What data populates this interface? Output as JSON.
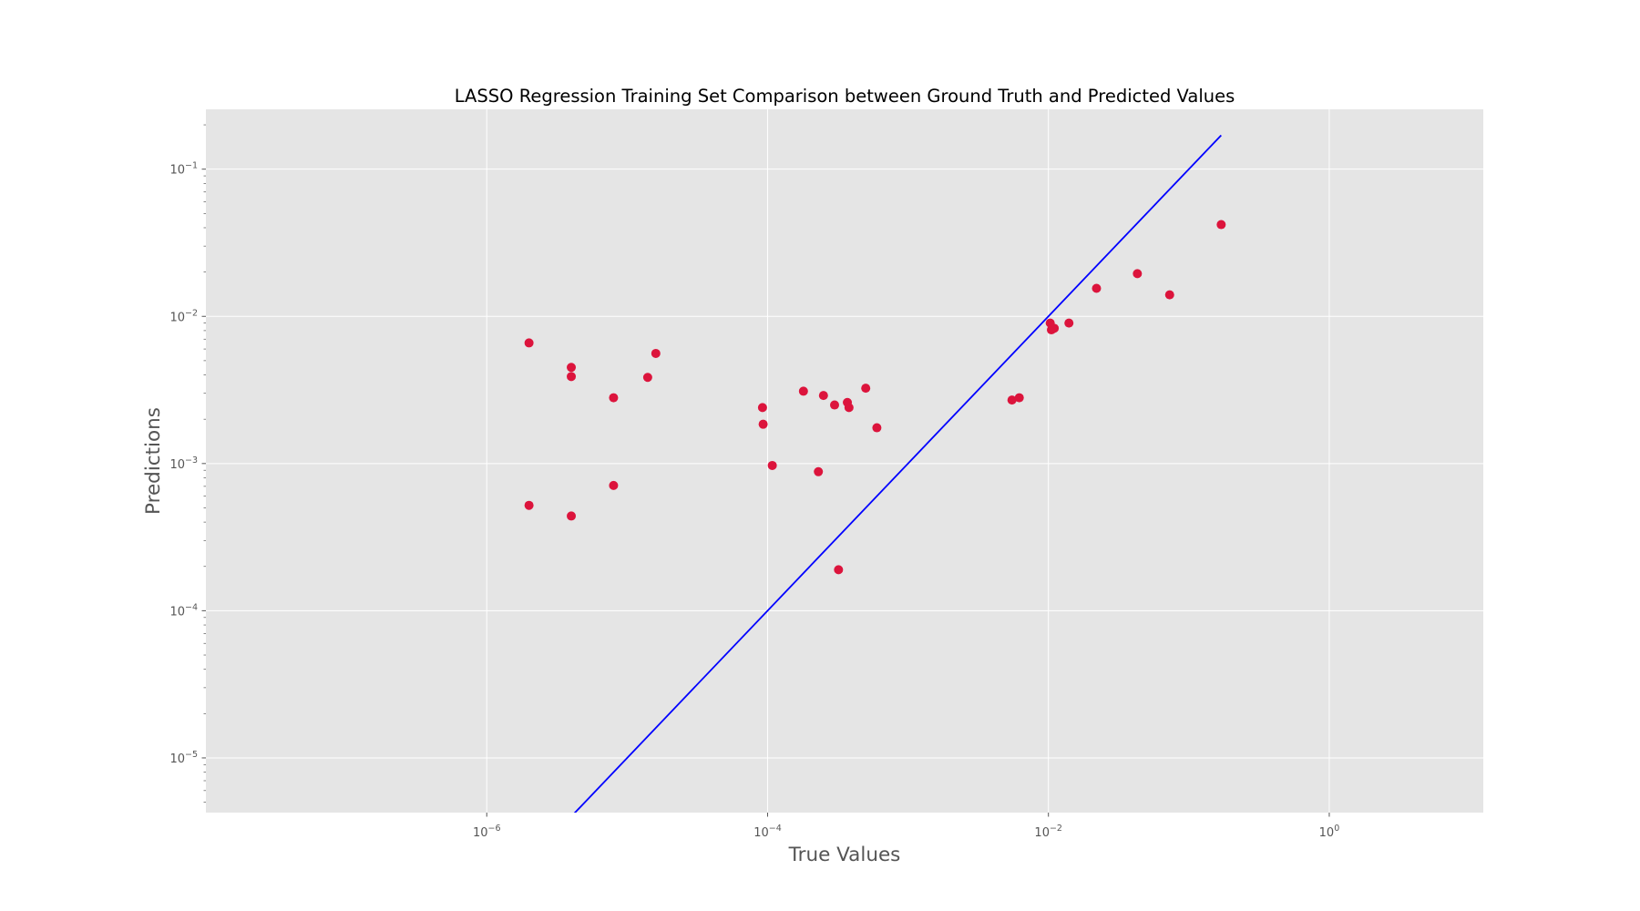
{
  "chart_data": {
    "type": "scatter",
    "title": "LASSO Regression Training Set Comparison between Ground Truth and Predicted Values",
    "xlabel": "True Values",
    "ylabel": "Predictions",
    "xscale": "log",
    "yscale": "log",
    "xlim": [
      1e-08,
      12.5
    ],
    "ylim": [
      4.25e-06,
      0.255
    ],
    "x_ticks": [
      {
        "base": "10",
        "exp": "−6",
        "value": 1e-06
      },
      {
        "base": "10",
        "exp": "−4",
        "value": 0.0001
      },
      {
        "base": "10",
        "exp": "−2",
        "value": 0.01
      },
      {
        "base": "10",
        "exp": "0",
        "value": 1
      }
    ],
    "y_ticks": [
      {
        "base": "10",
        "exp": "−5",
        "value": 1e-05
      },
      {
        "base": "10",
        "exp": "−4",
        "value": 0.0001
      },
      {
        "base": "10",
        "exp": "−3",
        "value": 0.001
      },
      {
        "base": "10",
        "exp": "−2",
        "value": 0.01
      },
      {
        "base": "10",
        "exp": "−1",
        "value": 0.1
      }
    ],
    "grid": true,
    "background": "#e5e5e5",
    "grid_color": "#ffffff",
    "point_color": "#dc143c",
    "line_color": "#0000ff",
    "points": [
      {
        "x": 2e-06,
        "y": 0.0066
      },
      {
        "x": 2e-06,
        "y": 0.00052
      },
      {
        "x": 4e-06,
        "y": 0.0045
      },
      {
        "x": 4e-06,
        "y": 0.0039
      },
      {
        "x": 4e-06,
        "y": 0.00044
      },
      {
        "x": 8e-06,
        "y": 0.0028
      },
      {
        "x": 8e-06,
        "y": 0.00071
      },
      {
        "x": 1.4e-05,
        "y": 0.00385
      },
      {
        "x": 1.6e-05,
        "y": 0.0056
      },
      {
        "x": 9.2e-05,
        "y": 0.0024
      },
      {
        "x": 9.3e-05,
        "y": 0.00185
      },
      {
        "x": 0.000108,
        "y": 0.00097
      },
      {
        "x": 0.00018,
        "y": 0.0031
      },
      {
        "x": 0.00023,
        "y": 0.00088
      },
      {
        "x": 0.00025,
        "y": 0.0029
      },
      {
        "x": 0.0003,
        "y": 0.0025
      },
      {
        "x": 0.00032,
        "y": 0.00019
      },
      {
        "x": 0.00037,
        "y": 0.0026
      },
      {
        "x": 0.00038,
        "y": 0.0024
      },
      {
        "x": 0.0005,
        "y": 0.00325
      },
      {
        "x": 0.0006,
        "y": 0.00175
      },
      {
        "x": 0.0055,
        "y": 0.0027
      },
      {
        "x": 0.0062,
        "y": 0.0028
      },
      {
        "x": 0.0103,
        "y": 0.009
      },
      {
        "x": 0.0105,
        "y": 0.0081
      },
      {
        "x": 0.011,
        "y": 0.0083
      },
      {
        "x": 0.014,
        "y": 0.009
      },
      {
        "x": 0.022,
        "y": 0.0155
      },
      {
        "x": 0.043,
        "y": 0.0195
      },
      {
        "x": 0.073,
        "y": 0.014
      },
      {
        "x": 0.17,
        "y": 0.042
      }
    ],
    "reference_line": {
      "from": 1e-06,
      "to": 0.17
    }
  }
}
